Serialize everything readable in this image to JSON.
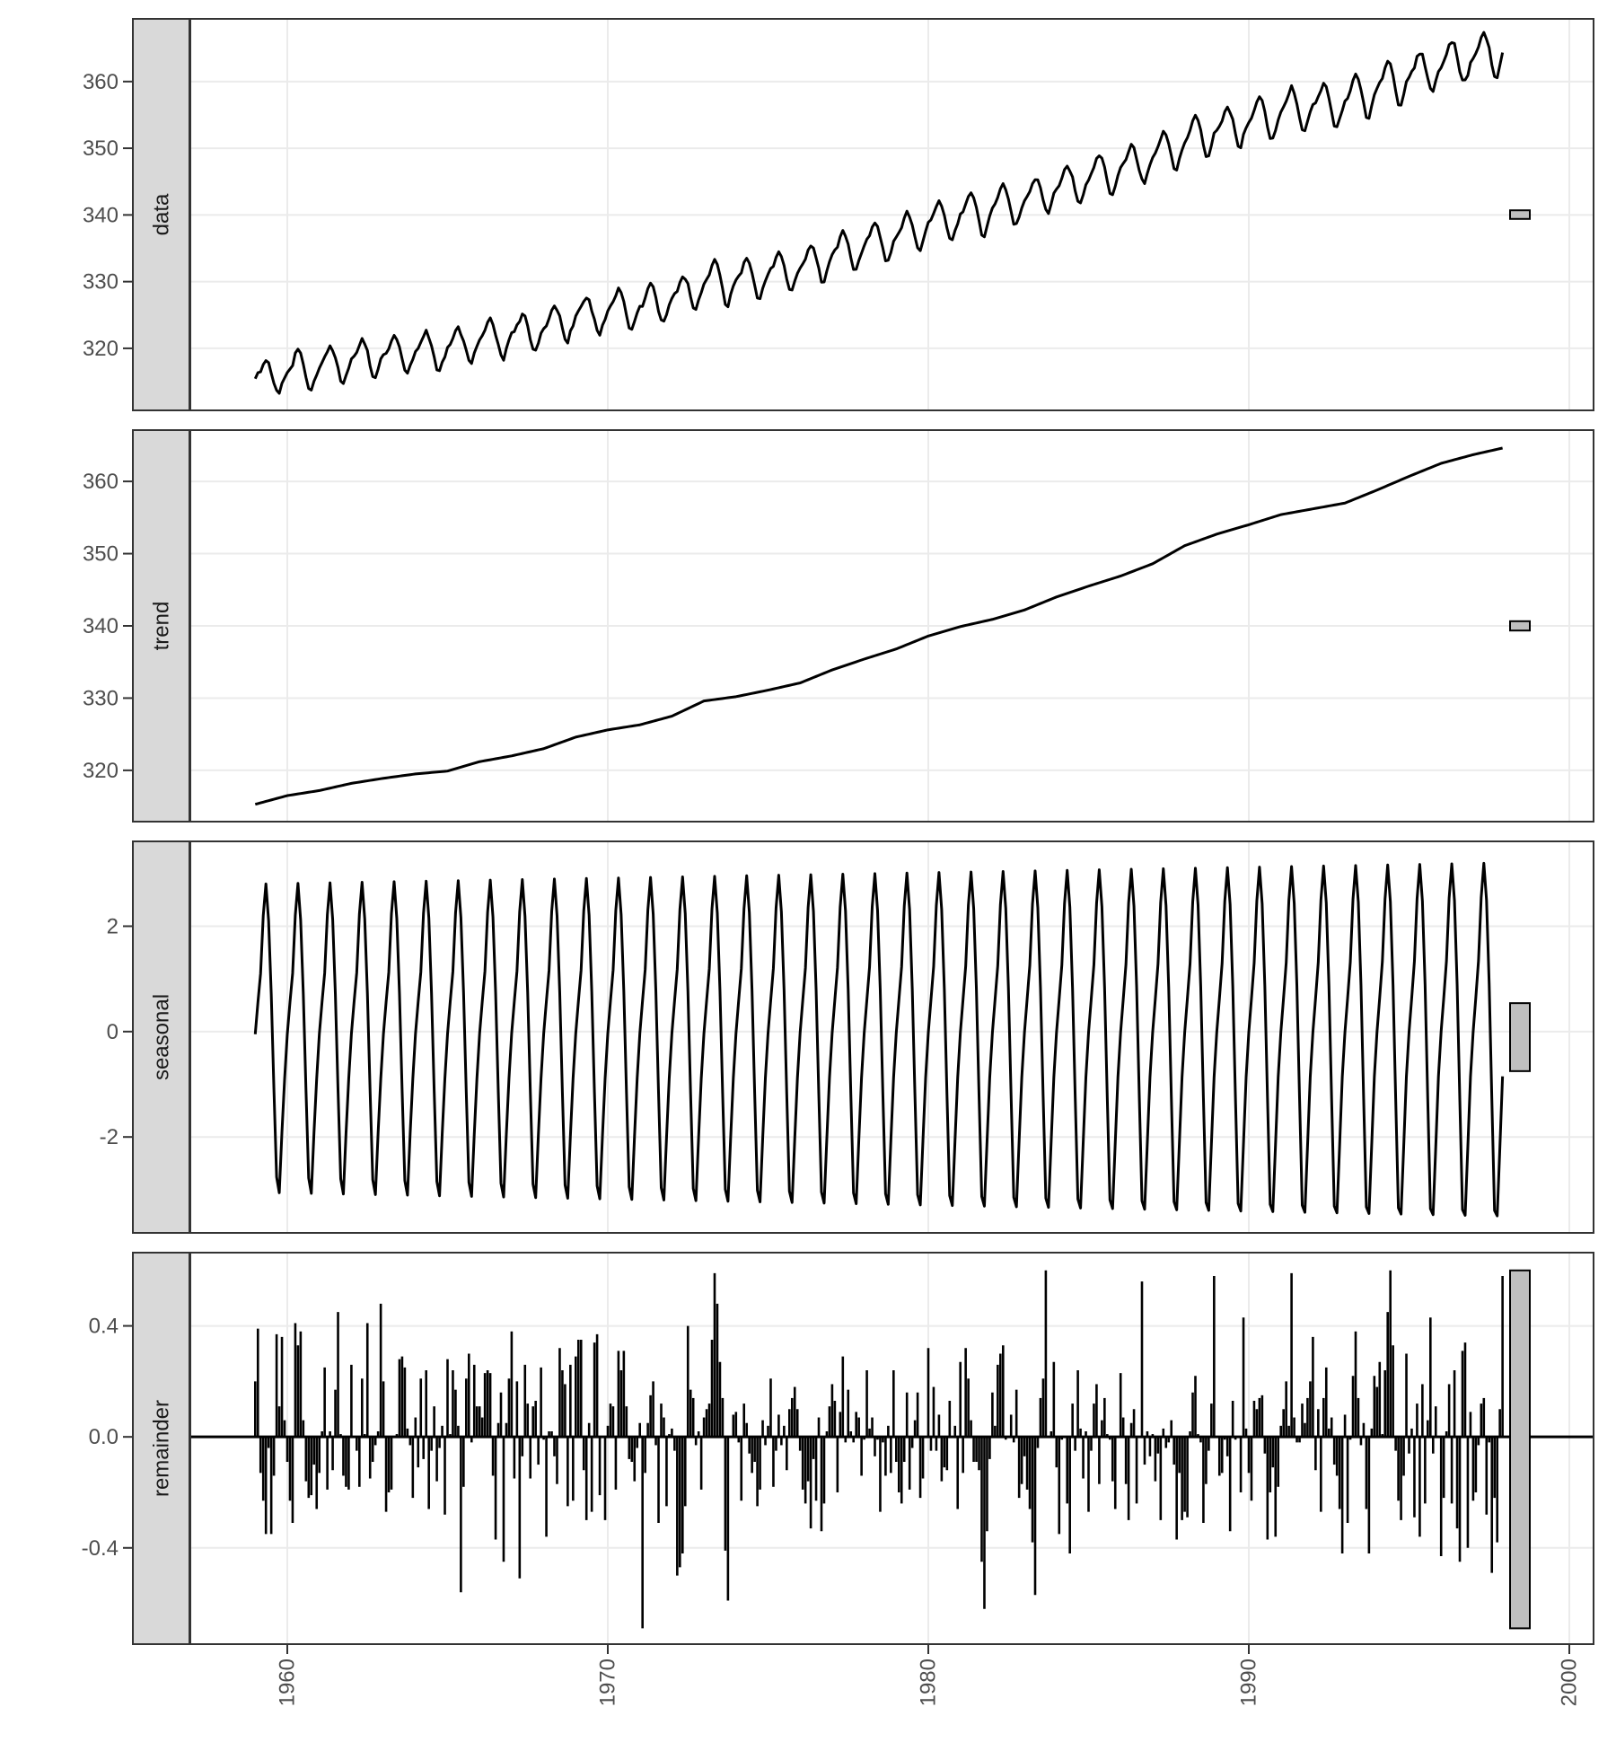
{
  "chart_data": {
    "type": "line",
    "title": "",
    "xlabel": "",
    "ylabel": "",
    "start": 1959,
    "frequency": 12,
    "xlim": [
      1956.6,
      2000.9
    ],
    "x_ticks": [
      "1960",
      "1970",
      "1980",
      "1990",
      "2000"
    ],
    "grid": true,
    "colors": {
      "line": "#000000",
      "strip": "#d9d9d9",
      "border": "#333333",
      "grid": "#ebebeb",
      "range_bar": "#bfbfbf",
      "tick_text": "#4d4d4d"
    },
    "panels": [
      {
        "name": "data",
        "ylim": [
          310.7,
          369.4
        ],
        "y_ticks": [
          "320",
          "330",
          "340",
          "350",
          "360"
        ],
        "kind": "line"
      },
      {
        "name": "trend",
        "ylim": [
          312.9,
          367.1
        ],
        "y_ticks": [
          "320",
          "330",
          "340",
          "350",
          "360"
        ],
        "kind": "line"
      },
      {
        "name": "seasonal",
        "ylim": [
          -3.82,
          3.61
        ],
        "y_ticks": [
          "-2",
          "0",
          "2"
        ],
        "kind": "line"
      },
      {
        "name": "remainder",
        "ylim": [
          -0.747,
          0.664
        ],
        "y_ticks": [
          "-0.4",
          "0.0",
          "0.4"
        ],
        "kind": "bar"
      }
    ],
    "trend_annual": {
      "years": [
        1959,
        1960,
        1961,
        1962,
        1963,
        1964,
        1965,
        1966,
        1967,
        1968,
        1969,
        1970,
        1971,
        1972,
        1973,
        1974,
        1975,
        1976,
        1977,
        1978,
        1979,
        1980,
        1981,
        1982,
        1983,
        1984,
        1985,
        1986,
        1987,
        1988,
        1989,
        1990,
        1991,
        1992,
        1993,
        1994,
        1995,
        1996,
        1997,
        1998
      ],
      "values": [
        315.3,
        316.5,
        317.2,
        318.2,
        318.9,
        319.5,
        319.9,
        321.2,
        322.0,
        323.0,
        324.6,
        325.6,
        326.3,
        327.5,
        329.6,
        330.2,
        331.1,
        332.1,
        333.9,
        335.4,
        336.8,
        338.6,
        339.9,
        340.9,
        342.2,
        344.0,
        345.5,
        346.9,
        348.6,
        351.1,
        352.7,
        354.0,
        355.4,
        356.2,
        357.0,
        358.8,
        360.7,
        362.5,
        363.7,
        364.7
      ]
    },
    "seasonal_first_year": [
      -0.05,
      0.55,
      1.1,
      2.2,
      2.8,
      2.1,
      0.7,
      -1.1,
      -2.75,
      -3.05,
      -1.9,
      -0.9
    ],
    "seasonal_last_year": [
      0.0,
      0.65,
      1.35,
      2.55,
      3.2,
      2.5,
      0.9,
      -1.3,
      -3.4,
      -3.5,
      -2.2,
      -0.85
    ],
    "remainder": [
      0.2,
      0.39,
      -0.13,
      -0.23,
      -0.35,
      -0.04,
      -0.35,
      -0.14,
      0.37,
      0.11,
      0.36,
      0.06,
      -0.09,
      -0.23,
      -0.31,
      0.41,
      0.33,
      0.38,
      0.06,
      -0.16,
      -0.22,
      -0.21,
      -0.1,
      -0.26,
      -0.13,
      0.02,
      0.25,
      -0.19,
      0.02,
      -0.12,
      0.17,
      0.45,
      0.01,
      -0.14,
      -0.18,
      -0.19,
      0.26,
      0.0,
      -0.05,
      -0.18,
      0.21,
      0.01,
      0.41,
      -0.15,
      -0.09,
      -0.03,
      0.02,
      0.48,
      0.2,
      -0.27,
      -0.2,
      -0.19,
      0.0,
      0.01,
      0.28,
      0.29,
      0.25,
      0.03,
      -0.03,
      -0.22,
      0.07,
      -0.11,
      0.21,
      -0.08,
      0.24,
      -0.26,
      -0.05,
      0.11,
      -0.16,
      -0.04,
      0.04,
      -0.28,
      0.28,
      0.01,
      0.24,
      0.17,
      0.04,
      -0.56,
      -0.18,
      0.21,
      0.3,
      -0.02,
      0.26,
      0.11,
      0.11,
      0.07,
      0.23,
      0.24,
      0.23,
      -0.14,
      -0.37,
      0.05,
      0.16,
      -0.45,
      0.05,
      0.21,
      0.38,
      -0.15,
      0.2,
      -0.51,
      -0.07,
      0.26,
      0.12,
      -0.15,
      0.11,
      0.13,
      -0.1,
      0.25,
      -0.01,
      -0.36,
      0.02,
      0.02,
      -0.07,
      -0.17,
      0.32,
      0.24,
      0.19,
      -0.25,
      0.26,
      -0.23,
      0.29,
      0.35,
      0.35,
      -0.12,
      -0.3,
      0.05,
      -0.27,
      0.34,
      0.37,
      -0.21,
      0.0,
      -0.3,
      0.04,
      0.12,
      0.11,
      -0.19,
      0.31,
      0.24,
      0.31,
      0.11,
      -0.08,
      -0.09,
      -0.16,
      -0.04,
      0.05,
      -0.69,
      -0.13,
      0.05,
      0.15,
      0.2,
      -0.03,
      -0.31,
      0.12,
      0.07,
      -0.25,
      0.01,
      0.03,
      -0.05,
      -0.5,
      -0.47,
      -0.42,
      -0.25,
      0.4,
      0.17,
      0.14,
      -0.03,
      0.02,
      -0.19,
      0.07,
      0.1,
      0.12,
      0.35,
      0.59,
      0.48,
      0.27,
      0.14,
      -0.41,
      -0.59,
      0.0,
      0.08,
      0.09,
      -0.02,
      -0.23,
      0.12,
      0.05,
      -0.06,
      -0.13,
      -0.09,
      -0.25,
      -0.19,
      0.06,
      -0.03,
      0.04,
      0.21,
      -0.18,
      -0.05,
      0.08,
      -0.03,
      0.04,
      -0.12,
      0.1,
      0.14,
      0.18,
      0.1,
      -0.05,
      -0.19,
      -0.24,
      -0.16,
      -0.33,
      -0.08,
      -0.23,
      0.07,
      -0.34,
      -0.24,
      0.02,
      0.11,
      0.19,
      0.13,
      -0.2,
      0.09,
      0.29,
      -0.02,
      0.17,
      0.02,
      -0.02,
      0.09,
      0.07,
      -0.14,
      -0.01,
      0.24,
      0.03,
      0.07,
      -0.07,
      -0.01,
      -0.27,
      -0.02,
      -0.14,
      0.04,
      -0.13,
      0.24,
      -0.09,
      -0.2,
      -0.24,
      -0.09,
      0.16,
      -0.19,
      -0.04,
      0.06,
      0.16,
      -0.22,
      -0.15,
      0.0,
      0.32,
      -0.05,
      0.18,
      -0.05,
      0.08,
      -0.16,
      -0.11,
      -0.12,
      0.13,
      0.0,
      0.04,
      -0.26,
      0.27,
      -0.13,
      0.32,
      0.21,
      0.06,
      -0.09,
      -0.09,
      -0.12,
      -0.45,
      -0.62,
      -0.34,
      -0.08,
      0.16,
      0.04,
      0.26,
      0.3,
      0.33,
      -0.01,
      0.0,
      0.08,
      -0.02,
      0.17,
      -0.22,
      -0.17,
      -0.07,
      -0.19,
      -0.26,
      -0.38,
      -0.57,
      -0.04,
      0.14,
      0.21,
      0.6,
      0.0,
      0.02,
      0.27,
      -0.11,
      -0.35,
      -0.01,
      0.0,
      -0.24,
      -0.42,
      0.12,
      -0.05,
      0.24,
      0.03,
      -0.15,
      0.02,
      -0.27,
      -0.05,
      0.12,
      0.19,
      -0.17,
      0.06,
      0.14,
      0.01,
      -0.01,
      -0.16,
      -0.26,
      0.0,
      0.23,
      0.07,
      -0.17,
      -0.3,
      0.05,
      0.1,
      -0.24,
      0.0,
      0.56,
      -0.1,
      0.02,
      -0.07,
      0.01,
      -0.16,
      -0.06,
      -0.3,
      0.03,
      -0.04,
      -0.02,
      0.06,
      -0.1,
      -0.37,
      -0.13,
      -0.3,
      -0.27,
      -0.29,
      0.02,
      0.16,
      0.22,
      0.01,
      -0.02,
      -0.31,
      -0.17,
      -0.05,
      0.12,
      0.58,
      0.0,
      -0.14,
      -0.13,
      -0.01,
      -0.07,
      -0.34,
      0.13,
      -0.01,
      0.0,
      -0.2,
      0.43,
      0.03,
      -0.13,
      -0.23,
      0.13,
      0.1,
      0.14,
      0.15,
      -0.06,
      -0.37,
      -0.2,
      -0.11,
      -0.36,
      -0.18,
      0.04,
      0.1,
      0.2,
      0.04,
      0.59,
      0.07,
      -0.02,
      -0.02,
      0.12,
      0.05,
      0.14,
      0.2,
      0.36,
      -0.12,
      0.1,
      -0.27,
      0.14,
      0.25,
      0.03,
      0.07,
      -0.1,
      -0.14,
      -0.26,
      -0.42,
      0.08,
      -0.31,
      -0.01,
      0.22,
      0.38,
      0.14,
      -0.03,
      0.05,
      -0.26,
      -0.42,
      0.03,
      0.22,
      0.18,
      0.27,
      0.01,
      0.24,
      0.45,
      0.6,
      0.33,
      -0.05,
      -0.23,
      -0.3,
      -0.14,
      0.3,
      -0.06,
      0.03,
      -0.29,
      0.12,
      -0.36,
      0.19,
      -0.24,
      0.06,
      0.43,
      -0.06,
      0.11,
      0.0,
      -0.43,
      -0.22,
      0.02,
      0.19,
      -0.24,
      0.24,
      -0.33,
      -0.45,
      0.31,
      0.34,
      -0.4,
      0.09,
      -0.23,
      -0.2,
      -0.03,
      0.12,
      0.14,
      -0.28,
      -0.02,
      -0.49,
      -0.22,
      -0.38,
      0.1,
      0.58
    ]
  }
}
